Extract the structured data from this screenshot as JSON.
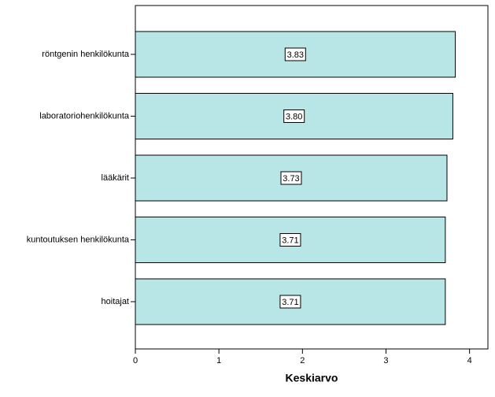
{
  "chart_data": {
    "type": "hbar",
    "categories": [
      "röntgenin henkilökunta",
      "laboratoriohenkilökunta",
      "lääkärit",
      "kuntoutuksen henkilökunta",
      "hoitajat"
    ],
    "values": [
      3.83,
      3.8,
      3.73,
      3.71,
      3.71
    ],
    "value_labels": [
      "3.83",
      "3.80",
      "3.73",
      "3.71",
      "3.71"
    ],
    "color": "#b8e6e6",
    "x_label": "Keskiarvo",
    "xlim": [
      0,
      4.22
    ],
    "xticks": [
      0,
      1,
      2,
      3,
      4
    ]
  }
}
